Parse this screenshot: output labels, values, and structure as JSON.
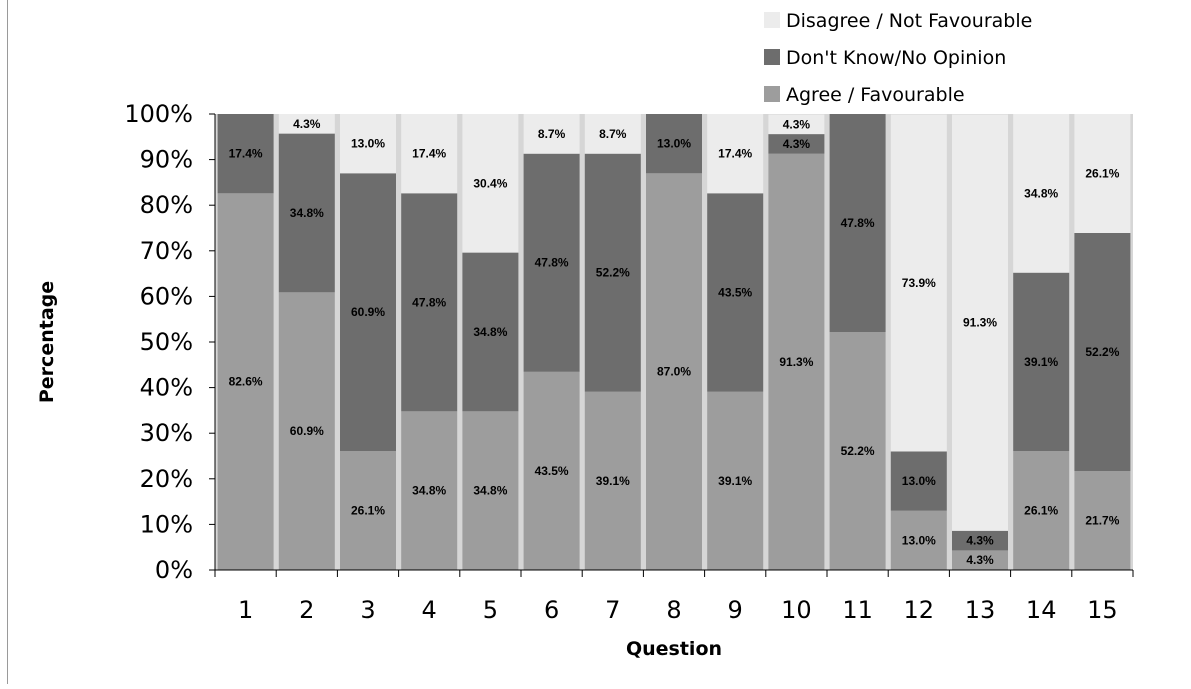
{
  "chart_data": {
    "type": "bar",
    "stacked": true,
    "xlabel": "Question",
    "ylabel": "Percentage",
    "ylim": [
      0,
      100
    ],
    "y_ticks": [
      "0%",
      "10%",
      "20%",
      "30%",
      "40%",
      "50%",
      "60%",
      "70%",
      "80%",
      "90%",
      "100%"
    ],
    "categories": [
      "1",
      "2",
      "3",
      "4",
      "5",
      "6",
      "7",
      "8",
      "9",
      "10",
      "11",
      "12",
      "13",
      "14",
      "15"
    ],
    "legend_position": "top-right",
    "series": [
      {
        "name": "Agree / Favourable",
        "color": "#9d9d9d",
        "values": [
          82.6,
          60.9,
          26.1,
          34.8,
          34.8,
          43.5,
          39.1,
          87.0,
          39.1,
          91.3,
          52.2,
          13.0,
          4.3,
          26.1,
          21.7
        ],
        "labels": [
          "82.6%",
          "60.9%",
          "26.1%",
          "34.8%",
          "34.8%",
          "43.5%",
          "39.1%",
          "87.0%",
          "39.1%",
          "91.3%",
          "52.2%",
          "13.0%",
          "4.3%",
          "26.1%",
          "21.7%"
        ]
      },
      {
        "name": "Don't Know/No Opinion",
        "color": "#6d6d6d",
        "values": [
          17.4,
          34.8,
          60.9,
          47.8,
          34.8,
          47.8,
          52.2,
          13.0,
          43.5,
          4.3,
          47.8,
          13.0,
          4.3,
          39.1,
          52.2
        ],
        "labels": [
          "17.4%",
          "34.8%",
          "60.9%",
          "47.8%",
          "34.8%",
          "47.8%",
          "52.2%",
          "13.0%",
          "43.5%",
          "4.3%",
          "47.8%",
          "13.0%",
          "4.3%",
          "39.1%",
          "52.2%"
        ]
      },
      {
        "name": "Disagree / Not Favourable",
        "color": "#ececec",
        "values": [
          0,
          4.3,
          13.0,
          17.4,
          30.4,
          8.7,
          8.7,
          0,
          17.4,
          4.3,
          0,
          73.9,
          91.3,
          34.8,
          26.1
        ],
        "labels": [
          "",
          "4.3%",
          "13.0%",
          "17.4%",
          "30.4%",
          "8.7%",
          "8.7%",
          "",
          "17.4%",
          "4.3%",
          "",
          "73.9%",
          "91.3%",
          "34.8%",
          "26.1%"
        ]
      }
    ]
  }
}
